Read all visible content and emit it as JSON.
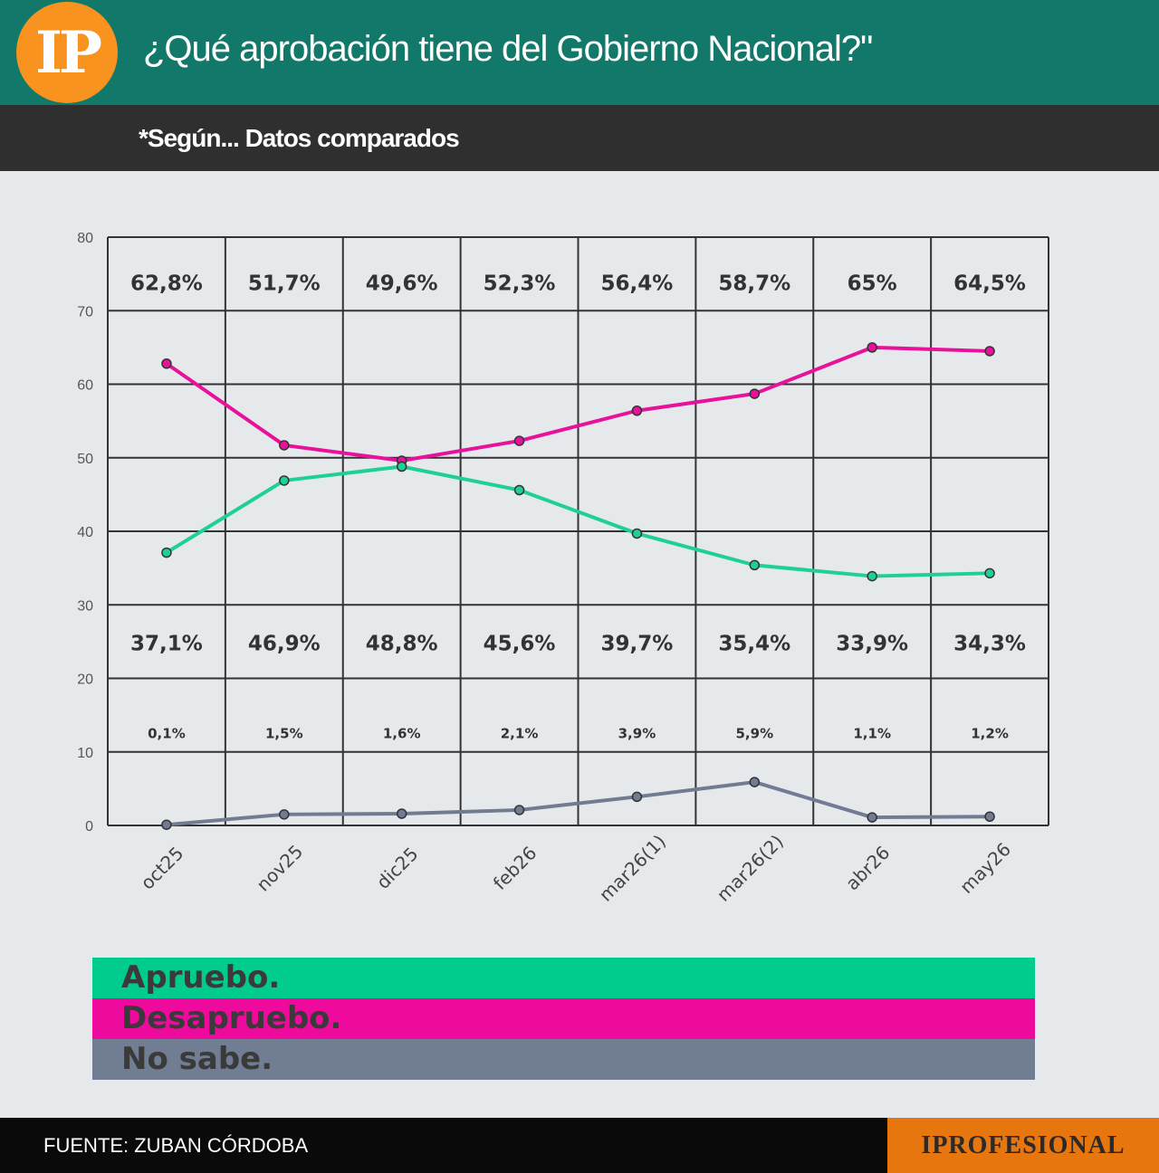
{
  "header": {
    "logo_text": "IP",
    "title": "¿Qué aprobación tiene del Gobierno Nacional?\"",
    "subtitle": "*Según... Datos comparados"
  },
  "chart_data": {
    "type": "line",
    "categories": [
      "oct25",
      "nov25",
      "dic25",
      "feb26",
      "mar26(1)",
      "mar26(2)",
      "abr26",
      "may26"
    ],
    "ylim": [
      0,
      80
    ],
    "yticks": [
      0,
      10,
      20,
      30,
      40,
      50,
      60,
      70,
      80
    ],
    "grid": true,
    "series": [
      {
        "name": "Desapruebo.",
        "color": "#e8119a",
        "values": [
          62.8,
          51.7,
          49.6,
          52.3,
          56.4,
          58.7,
          65,
          64.5
        ],
        "labels": [
          "62,8%",
          "51,7%",
          "49,6%",
          "52,3%",
          "56,4%",
          "58,7%",
          "65%",
          "64,5%"
        ]
      },
      {
        "name": "Apruebo.",
        "color": "#1fd096",
        "values": [
          37.1,
          46.9,
          48.8,
          45.6,
          39.7,
          35.4,
          33.9,
          34.3
        ],
        "labels": [
          "37,1%",
          "46,9%",
          "48,8%",
          "45,6%",
          "39,7%",
          "35,4%",
          "33,9%",
          "34,3%"
        ]
      },
      {
        "name": "No sabe.",
        "color": "#717b92",
        "values": [
          0.1,
          1.5,
          1.6,
          2.1,
          3.9,
          5.9,
          1.1,
          1.2
        ],
        "labels": [
          "0,1%",
          "1,5%",
          "1,6%",
          "2,1%",
          "3,9%",
          "5,9%",
          "1,1%",
          "1,2%"
        ]
      }
    ]
  },
  "legend": {
    "apruebo": "Apruebo.",
    "desapruebo": "Desapruebo.",
    "no_sabe": "No sabe."
  },
  "footer": {
    "source": "FUENTE: ZUBAN CÓRDOBA",
    "brand": "IPROFESIONAL"
  }
}
